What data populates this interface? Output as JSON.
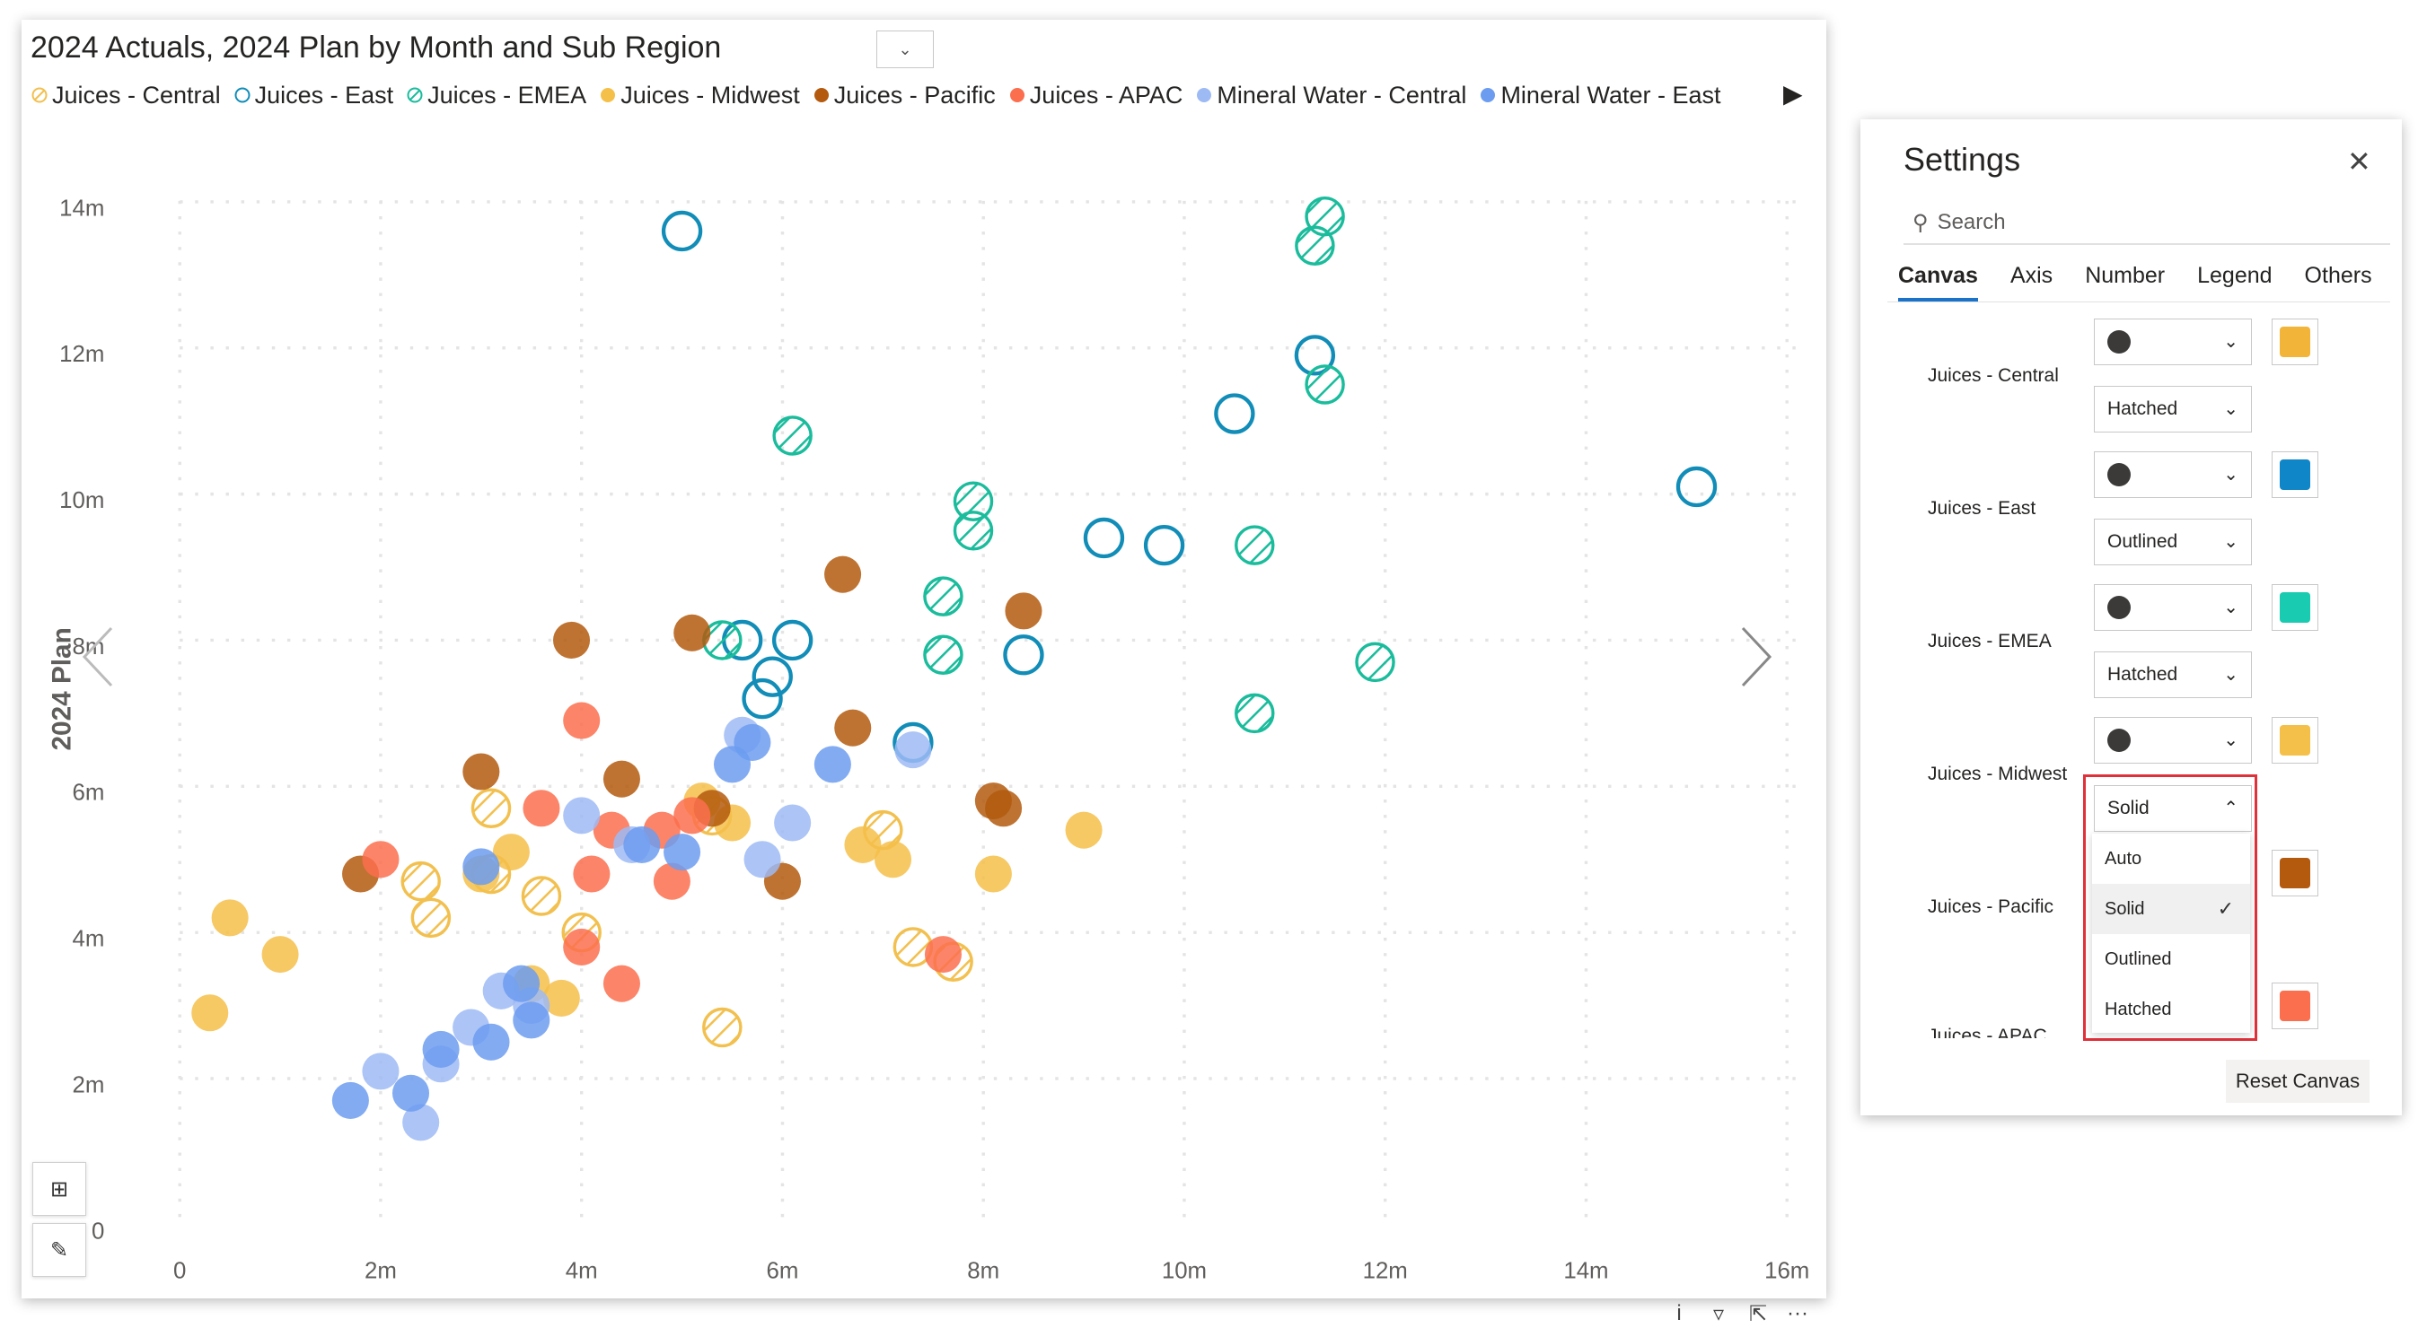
{
  "visual": {
    "title": "2024 Actuals, 2024 Plan by Month and Sub Region",
    "legend": [
      {
        "label": "Juices - Central",
        "color": "#F2C04F",
        "style": "hatched"
      },
      {
        "label": "Juices - East",
        "color": "#118DB8",
        "style": "outlined"
      },
      {
        "label": "Juices - EMEA",
        "color": "#1ABC9C",
        "style": "hatched"
      },
      {
        "label": "Juices - Midwest",
        "color": "#F5C04A",
        "style": "solid"
      },
      {
        "label": "Juices - Pacific",
        "color": "#B35A0E",
        "style": "solid"
      },
      {
        "label": "Juices - APAC",
        "color": "#FB6E4E",
        "style": "solid"
      },
      {
        "label": "Mineral Water - Central",
        "color": "#9DBAF5",
        "style": "solid"
      },
      {
        "label": "Mineral Water - East",
        "color": "#6C9CF0",
        "style": "solid"
      }
    ],
    "footer_info": "i",
    "footer_more": "···"
  },
  "chart_data": {
    "type": "scatter",
    "xlabel": "",
    "ylabel": "2024 Plan",
    "x_ticks": [
      "0",
      "2m",
      "4m",
      "6m",
      "8m",
      "10m",
      "12m",
      "14m",
      "16m"
    ],
    "y_ticks": [
      "0",
      "2m",
      "4m",
      "6m",
      "8m",
      "10m",
      "12m",
      "14m"
    ],
    "xlim": [
      0,
      16000000
    ],
    "ylim": [
      0,
      14000000
    ],
    "grid": true,
    "series": [
      {
        "name": "Juices - East",
        "color": "#118DB8",
        "style": "outlined",
        "points": [
          [
            5.0,
            13.6
          ],
          [
            10.5,
            11.1
          ],
          [
            11.3,
            11.9
          ],
          [
            15.1,
            10.1
          ],
          [
            9.2,
            9.4
          ],
          [
            9.8,
            9.3
          ],
          [
            6.1,
            8.0
          ],
          [
            5.6,
            8.0
          ],
          [
            5.9,
            7.5
          ],
          [
            5.8,
            7.2
          ],
          [
            8.4,
            7.8
          ],
          [
            7.3,
            6.6
          ]
        ]
      },
      {
        "name": "Juices - EMEA",
        "color": "#1ABC9C",
        "style": "hatched",
        "points": [
          [
            11.4,
            13.8
          ],
          [
            11.3,
            13.4
          ],
          [
            11.4,
            11.5
          ],
          [
            6.1,
            10.8
          ],
          [
            7.9,
            9.9
          ],
          [
            7.9,
            9.5
          ],
          [
            10.7,
            9.3
          ],
          [
            7.6,
            8.6
          ],
          [
            11.9,
            7.7
          ],
          [
            7.6,
            7.8
          ],
          [
            10.7,
            7.0
          ],
          [
            5.4,
            8.0
          ]
        ]
      },
      {
        "name": "Juices - Central",
        "color": "#F2C04F",
        "style": "hatched",
        "points": [
          [
            3.1,
            5.7
          ],
          [
            2.4,
            4.7
          ],
          [
            2.5,
            4.2
          ],
          [
            3.1,
            4.8
          ],
          [
            4.0,
            4.0
          ],
          [
            5.3,
            5.6
          ],
          [
            7.0,
            5.4
          ],
          [
            7.3,
            3.8
          ],
          [
            7.7,
            3.6
          ],
          [
            5.4,
            2.7
          ],
          [
            3.6,
            4.5
          ]
        ]
      },
      {
        "name": "Juices - Midwest",
        "color": "#F5C04A",
        "style": "solid",
        "points": [
          [
            0.5,
            4.2
          ],
          [
            1.0,
            3.7
          ],
          [
            0.3,
            2.9
          ],
          [
            3.3,
            5.1
          ],
          [
            3.0,
            4.8
          ],
          [
            3.5,
            3.3
          ],
          [
            6.8,
            5.2
          ],
          [
            7.1,
            5.0
          ],
          [
            8.1,
            4.8
          ],
          [
            9.0,
            5.4
          ],
          [
            5.5,
            5.5
          ],
          [
            5.2,
            5.8
          ],
          [
            3.8,
            3.1
          ]
        ]
      },
      {
        "name": "Juices - Pacific",
        "color": "#B35A0E",
        "style": "solid",
        "points": [
          [
            1.8,
            4.8
          ],
          [
            3.0,
            6.2
          ],
          [
            3.9,
            8.0
          ],
          [
            5.1,
            8.1
          ],
          [
            6.6,
            8.9
          ],
          [
            8.4,
            8.4
          ],
          [
            6.7,
            6.8
          ],
          [
            8.1,
            5.8
          ],
          [
            8.2,
            5.7
          ],
          [
            6.0,
            4.7
          ],
          [
            4.4,
            6.1
          ],
          [
            5.3,
            5.7
          ]
        ]
      },
      {
        "name": "Juices - APAC",
        "color": "#FB6E4E",
        "style": "solid",
        "points": [
          [
            2.0,
            5.0
          ],
          [
            3.6,
            5.7
          ],
          [
            4.0,
            6.9
          ],
          [
            4.3,
            5.4
          ],
          [
            4.8,
            5.4
          ],
          [
            4.9,
            4.7
          ],
          [
            7.6,
            3.7
          ],
          [
            4.1,
            4.8
          ],
          [
            4.0,
            3.8
          ],
          [
            4.4,
            3.3
          ],
          [
            5.1,
            5.6
          ]
        ]
      },
      {
        "name": "Mineral Water - Central",
        "color": "#9DBAF5",
        "style": "solid",
        "points": [
          [
            2.0,
            2.1
          ],
          [
            2.4,
            1.4
          ],
          [
            2.9,
            2.7
          ],
          [
            3.2,
            3.2
          ],
          [
            3.5,
            3.0
          ],
          [
            4.0,
            5.6
          ],
          [
            4.5,
            5.2
          ],
          [
            5.6,
            6.7
          ],
          [
            5.8,
            5.0
          ],
          [
            6.1,
            5.5
          ],
          [
            7.3,
            6.5
          ],
          [
            2.6,
            2.2
          ]
        ]
      },
      {
        "name": "Mineral Water - East",
        "color": "#6C9CF0",
        "style": "solid",
        "points": [
          [
            1.7,
            1.7
          ],
          [
            2.3,
            1.8
          ],
          [
            2.6,
            2.4
          ],
          [
            3.1,
            2.5
          ],
          [
            3.5,
            2.8
          ],
          [
            3.4,
            3.3
          ],
          [
            4.6,
            5.2
          ],
          [
            5.0,
            5.1
          ],
          [
            6.5,
            6.3
          ],
          [
            5.7,
            6.6
          ],
          [
            5.5,
            6.3
          ],
          [
            3.0,
            4.9
          ]
        ]
      }
    ]
  },
  "settings": {
    "title": "Settings",
    "search_placeholder": "Search",
    "tabs": [
      "Canvas",
      "Axis",
      "Number",
      "Legend",
      "Others"
    ],
    "rows": [
      {
        "label": "Juices - Central",
        "style": "Hatched",
        "color": "#F2B53A"
      },
      {
        "label": "Juices - East",
        "style": "Outlined",
        "color": "#0F86C8"
      },
      {
        "label": "Juices - EMEA",
        "style": "Hatched",
        "color": "#19CBB0"
      },
      {
        "label": "Juices - Midwest",
        "style": "Solid",
        "color": "#F5C04A"
      },
      {
        "label": "Juices - Pacific",
        "color": "#B35A0E"
      },
      {
        "label": "Juices - APAC",
        "color": "#FB6E4E"
      }
    ],
    "menu_options": [
      "Auto",
      "Solid",
      "Outlined",
      "Hatched"
    ],
    "menu_selected": "Solid",
    "reset_label": "Reset Canvas"
  }
}
